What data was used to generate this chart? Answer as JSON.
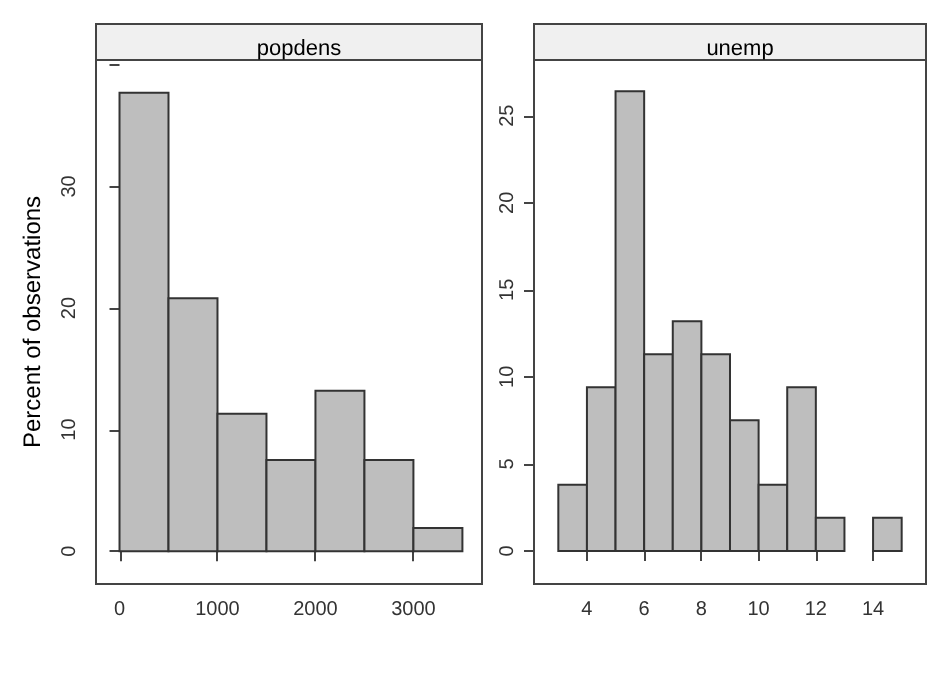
{
  "chart_data": [
    {
      "type": "histogram",
      "title": "popdens",
      "ylabel": "Percent of observations",
      "bins": [
        0,
        500,
        1000,
        1500,
        2000,
        2500,
        3000,
        3500
      ],
      "values": [
        37.7,
        20.8,
        11.3,
        7.5,
        13.2,
        7.5,
        1.9
      ],
      "color": "#bebebe",
      "xlim": [
        -240,
        3700
      ],
      "xticks": [
        0,
        1000,
        2000,
        3000
      ],
      "ylim": [
        -2.7,
        40.4
      ],
      "yticks": [
        0,
        10,
        20,
        30,
        {
          "value": 40,
          "label": null
        }
      ],
      "grid": false
    },
    {
      "type": "histogram",
      "title": "unemp",
      "bins": [
        3,
        4,
        5,
        6,
        7,
        8,
        9,
        10,
        11,
        12,
        13,
        14,
        15
      ],
      "values": [
        3.8,
        9.4,
        26.4,
        11.3,
        13.2,
        11.3,
        7.5,
        3.8,
        9.4,
        1.9,
        0,
        1.9
      ],
      "color": "#bebebe",
      "xlim": [
        2.15,
        15.85
      ],
      "xticks": [
        4,
        6,
        8,
        10,
        12,
        14
      ],
      "ylim": [
        -1.9,
        28.2
      ],
      "yticks": [
        0,
        5,
        10,
        15,
        20,
        25
      ],
      "grid": false
    }
  ]
}
